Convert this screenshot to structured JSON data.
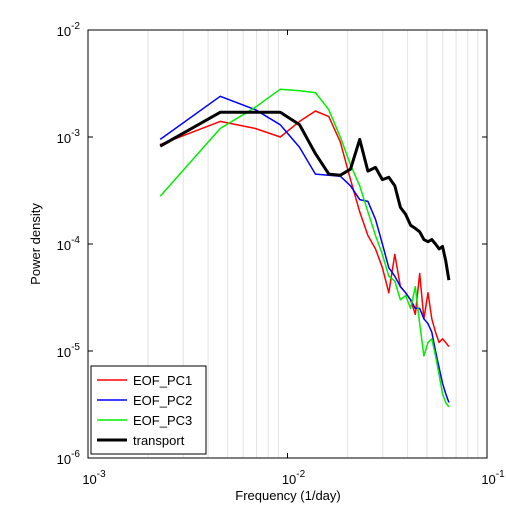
{
  "chart_data": {
    "type": "line",
    "xlabel": "Frequency (1/day)",
    "ylabel": "Power density",
    "xscale": "log",
    "yscale": "log",
    "grid": "x-minor",
    "legend": "lower left",
    "xlim": [
      0.001,
      0.1
    ],
    "xticks": [
      {
        "value": 0.001,
        "label": "10-3"
      },
      {
        "value": 0.01,
        "label": "10-2"
      },
      {
        "value": 0.1,
        "label": "10-1"
      }
    ],
    "ylim": [
      1e-06,
      0.01
    ],
    "yticks": [
      {
        "value": 1e-06,
        "label": "10-6"
      },
      {
        "value": 1e-05,
        "label": "10-5"
      },
      {
        "value": 0.0001,
        "label": "10-4"
      },
      {
        "value": 0.001,
        "label": "10-3"
      },
      {
        "value": 0.01,
        "label": "10-2"
      }
    ],
    "x": [
      0.0023,
      0.0046,
      0.0069,
      0.0092,
      0.0115,
      0.0138,
      0.0161,
      0.0184,
      0.0207,
      0.023,
      0.0253,
      0.0276,
      0.0299,
      0.0322,
      0.0345,
      0.0368,
      0.0391,
      0.0414,
      0.0437,
      0.046,
      0.0483,
      0.0506,
      0.0529,
      0.0552,
      0.0575,
      0.0598,
      0.0621,
      0.0644
    ],
    "series": [
      {
        "name": "EOF_PC1",
        "color": "#ff0000",
        "width": 1.5,
        "values": [
          0.00085,
          0.0014,
          0.0012,
          0.001,
          0.0014,
          0.00175,
          0.00155,
          0.0009,
          0.0004,
          0.0002,
          0.00012,
          9e-05,
          6e-05,
          3.5e-05,
          8e-05,
          4e-05,
          3.5e-05,
          3e-05,
          2.2e-05,
          5.3e-05,
          2e-05,
          3.5e-05,
          2e-05,
          1.5e-05,
          1.2e-05,
          1.3e-05,
          1.2e-05,
          1.1e-05
        ]
      },
      {
        "name": "EOF_PC2",
        "color": "#0000ff",
        "width": 1.5,
        "values": [
          0.00095,
          0.0024,
          0.0018,
          0.0013,
          0.0008,
          0.00045,
          0.00044,
          0.00043,
          0.00035,
          0.00026,
          0.00025,
          0.00017,
          0.0001,
          6e-05,
          5e-05,
          4e-05,
          3.5e-05,
          3e-05,
          2.5e-05,
          2.5e-05,
          2e-05,
          1.8e-05,
          1.5e-05,
          1e-05,
          7e-06,
          5e-06,
          4e-06,
          3.3e-06
        ]
      },
      {
        "name": "EOF_PC3",
        "color": "#00ee00",
        "width": 1.5,
        "values": [
          0.00028,
          0.0012,
          0.0019,
          0.0028,
          0.0027,
          0.0026,
          0.0018,
          0.001,
          0.00055,
          0.00035,
          0.0002,
          0.00012,
          8e-05,
          5e-05,
          4.5e-05,
          3e-05,
          3.3e-05,
          2.5e-05,
          4e-05,
          1.8e-05,
          9e-06,
          1.2e-05,
          1.3e-05,
          9e-06,
          6e-06,
          4e-06,
          3.3e-06,
          3e-06
        ]
      },
      {
        "name": "transport",
        "color": "#000000",
        "width": 3,
        "values": [
          0.00082,
          0.0017,
          0.0017,
          0.0017,
          0.0013,
          0.0007,
          0.00045,
          0.00044,
          0.0005,
          0.00095,
          0.00048,
          0.00052,
          0.0004,
          0.00042,
          0.00035,
          0.00022,
          0.00019,
          0.00015,
          0.00014,
          0.00013,
          0.00011,
          0.000105,
          0.00011,
          0.0001,
          9e-05,
          9.5e-05,
          7e-05,
          4.6e-05
        ]
      }
    ]
  }
}
